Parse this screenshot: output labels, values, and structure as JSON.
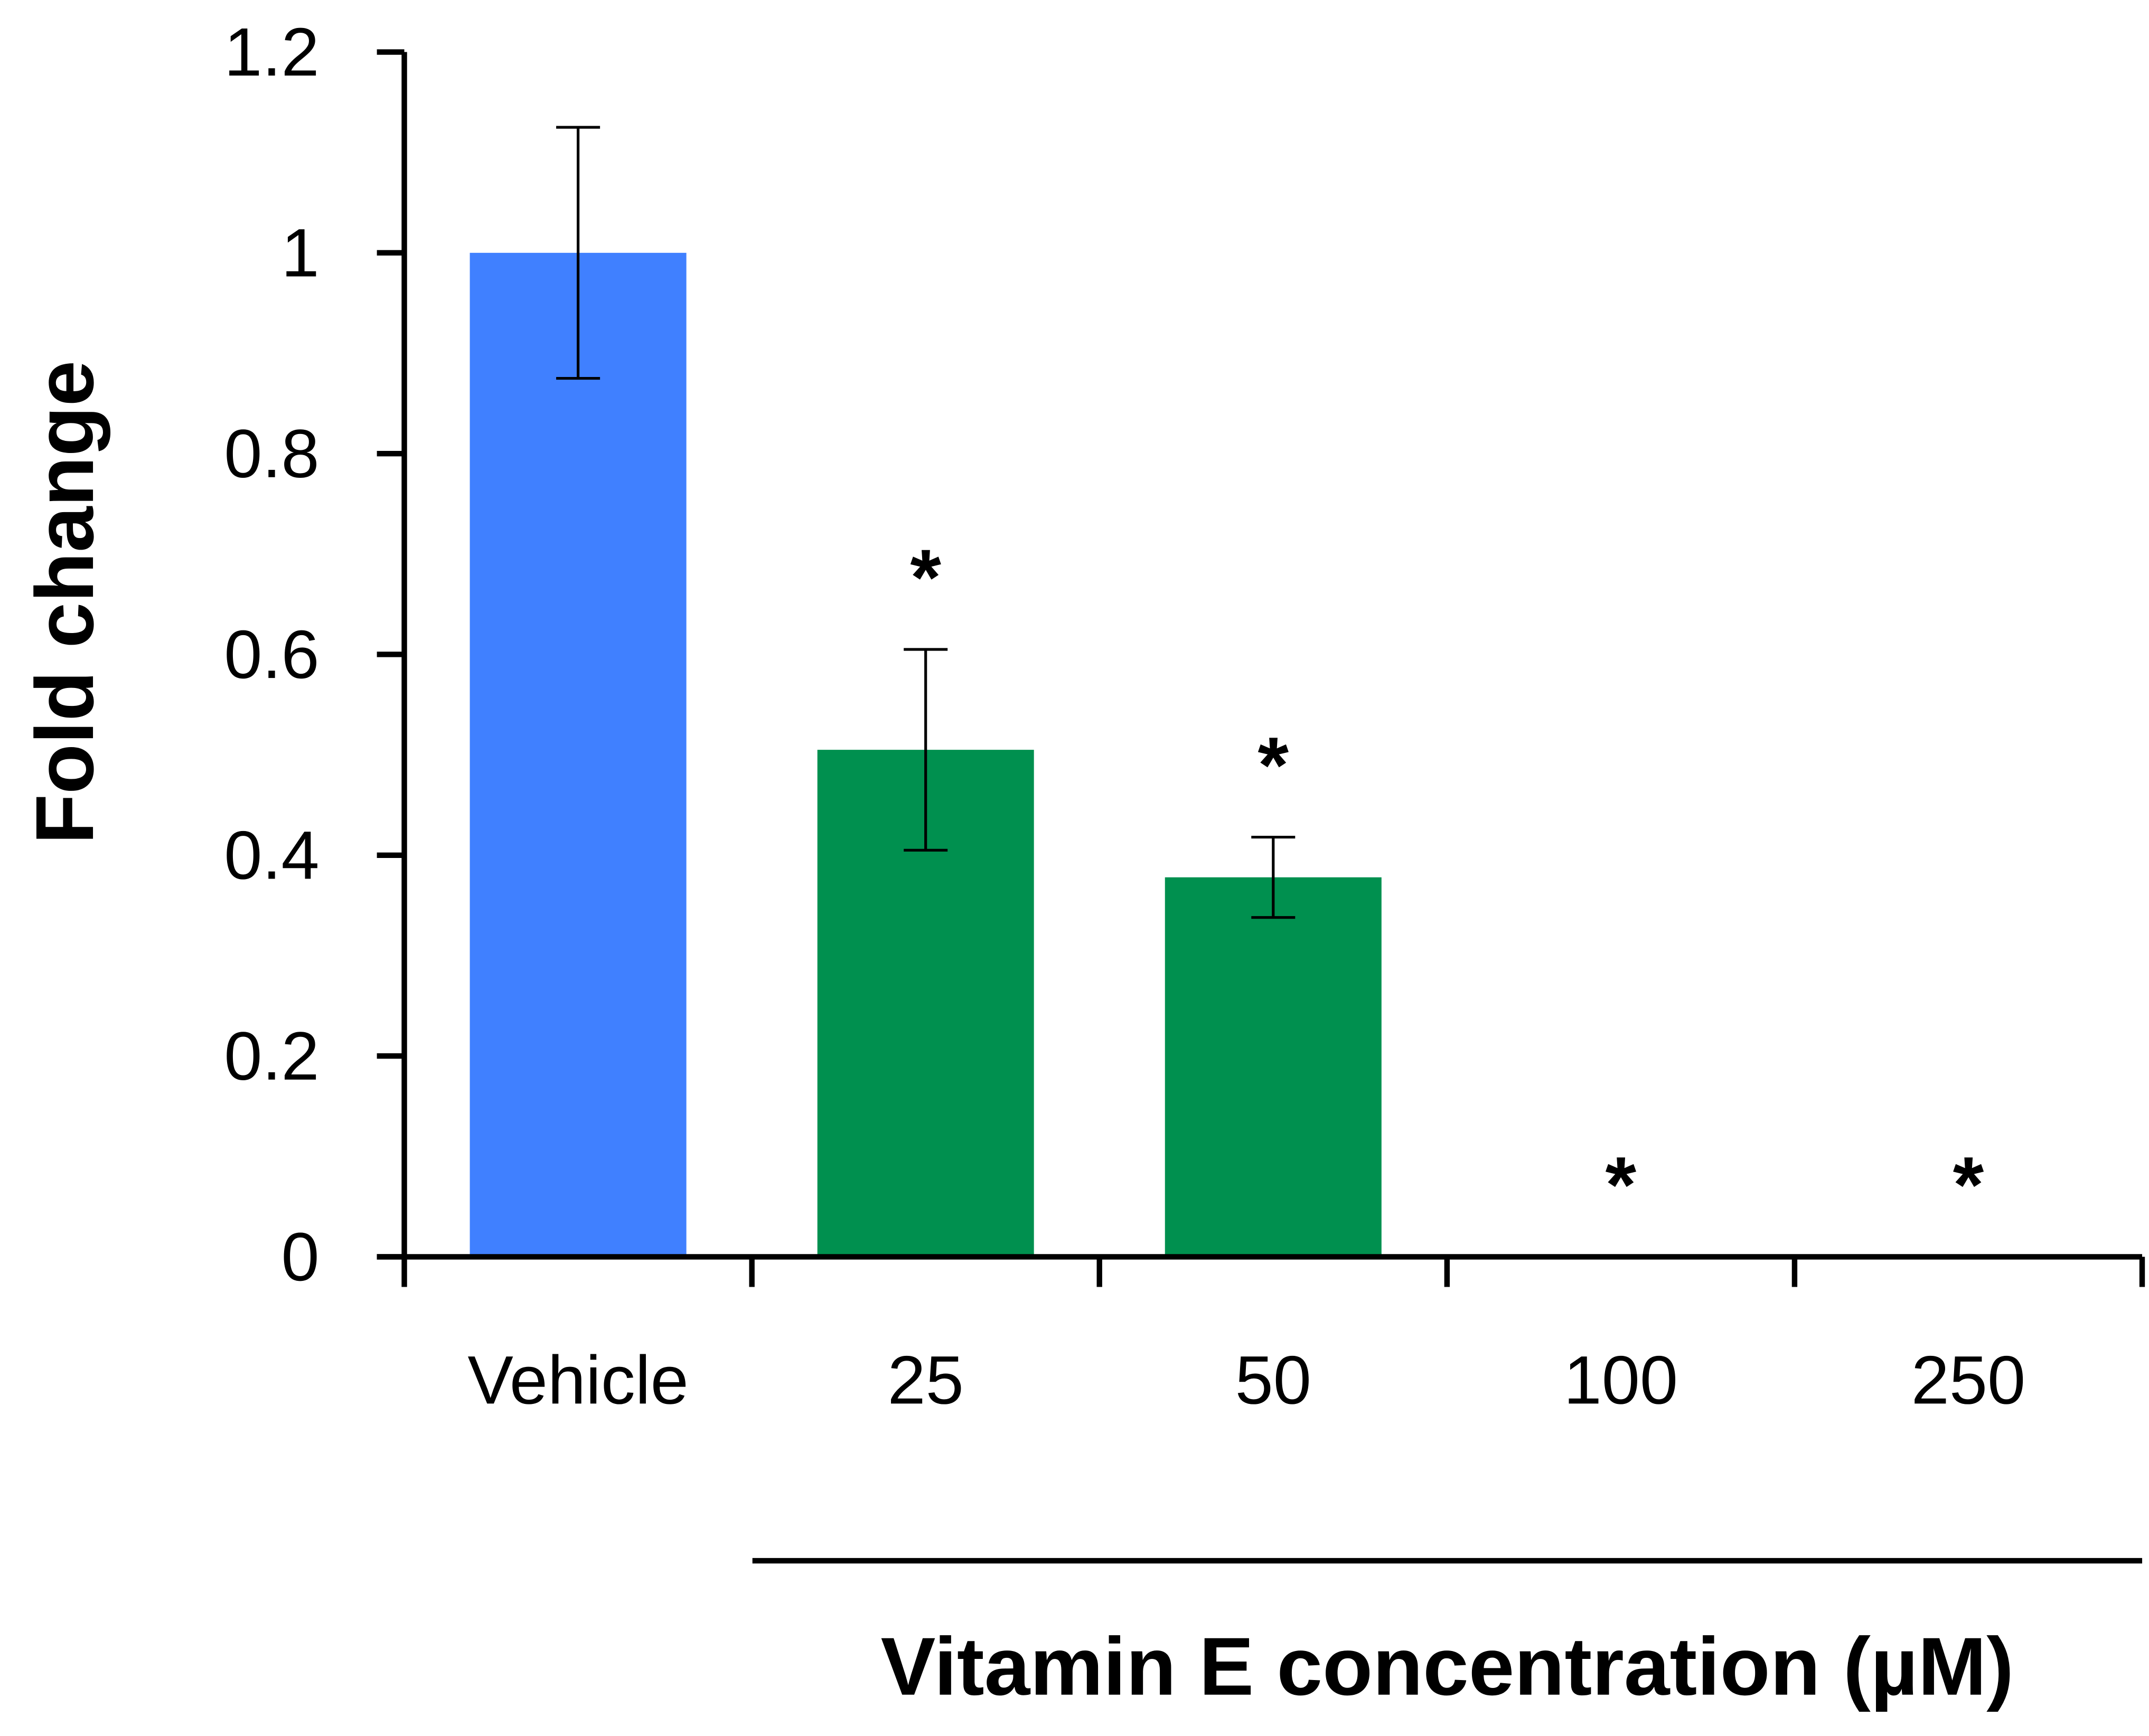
{
  "chart_data": {
    "type": "bar",
    "x_label": "Vitamin E concentration (µM)",
    "y_label": "Fold change",
    "categories": [
      "Vehicle",
      "25",
      "50",
      "100",
      "250"
    ],
    "values": [
      1.0,
      0.505,
      0.378,
      0,
      0
    ],
    "errors": [
      0.125,
      0.1,
      0.04,
      null,
      null
    ],
    "colors": [
      "#4080ff",
      "#00904f",
      "#00904f",
      "#00904f",
      "#00904f"
    ],
    "annotations": [
      null,
      "*",
      "*",
      "*",
      "*"
    ],
    "ylim": [
      0,
      1.2
    ],
    "yticks": [
      0,
      0.2,
      0.4,
      0.6,
      0.8,
      1,
      1.2
    ],
    "grid": false
  }
}
